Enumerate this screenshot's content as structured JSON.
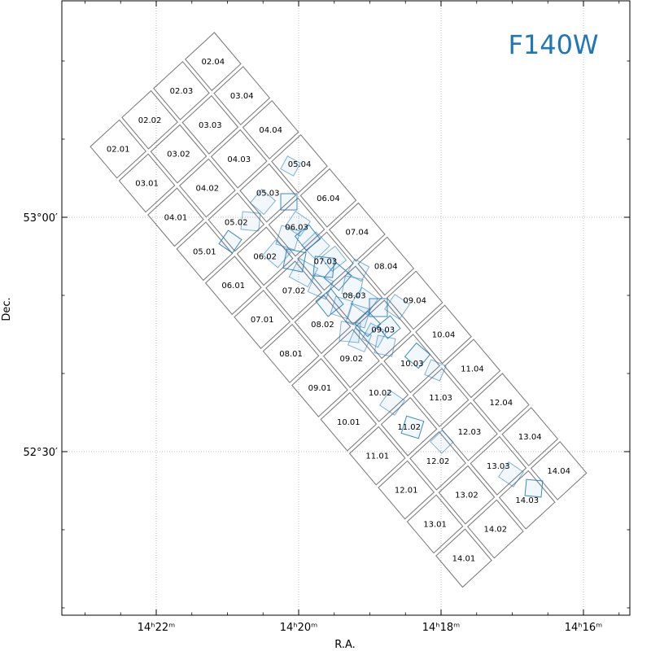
{
  "figure": {
    "filter_label": "F140W",
    "filter_color": "#1f77b4",
    "xlabel": "R.A.",
    "ylabel": "Dec."
  },
  "chart_data": {
    "type": "sky-footprint",
    "x_ticks": [
      {
        "value": 22,
        "label": "14ʰ22ᵐ"
      },
      {
        "value": 20,
        "label": "14ʰ20ᵐ"
      },
      {
        "value": 18,
        "label": "14ʰ18ᵐ"
      },
      {
        "value": 16,
        "label": "14ʰ16ᵐ"
      }
    ],
    "y_ticks": [
      {
        "value": 53.0,
        "label": "53°00′"
      },
      {
        "value": 52.5,
        "label": "52°30′"
      }
    ],
    "grid": true,
    "tile_outline_color": "#808080",
    "exposure_color": "#1f77b4",
    "tiles": [
      {
        "name": "02.01",
        "row": 2,
        "col": 1
      },
      {
        "name": "02.02",
        "row": 2,
        "col": 2
      },
      {
        "name": "02.03",
        "row": 2,
        "col": 3
      },
      {
        "name": "02.04",
        "row": 2,
        "col": 4
      },
      {
        "name": "03.01",
        "row": 3,
        "col": 1
      },
      {
        "name": "03.02",
        "row": 3,
        "col": 2
      },
      {
        "name": "03.03",
        "row": 3,
        "col": 3
      },
      {
        "name": "03.04",
        "row": 3,
        "col": 4
      },
      {
        "name": "04.01",
        "row": 4,
        "col": 1
      },
      {
        "name": "04.02",
        "row": 4,
        "col": 2
      },
      {
        "name": "04.03",
        "row": 4,
        "col": 3
      },
      {
        "name": "04.04",
        "row": 4,
        "col": 4
      },
      {
        "name": "05.01",
        "row": 5,
        "col": 1
      },
      {
        "name": "05.02",
        "row": 5,
        "col": 2
      },
      {
        "name": "05.03",
        "row": 5,
        "col": 3
      },
      {
        "name": "05.04",
        "row": 5,
        "col": 4
      },
      {
        "name": "06.01",
        "row": 6,
        "col": 1
      },
      {
        "name": "06.02",
        "row": 6,
        "col": 2
      },
      {
        "name": "06.03",
        "row": 6,
        "col": 3
      },
      {
        "name": "06.04",
        "row": 6,
        "col": 4
      },
      {
        "name": "07.01",
        "row": 7,
        "col": 1
      },
      {
        "name": "07.02",
        "row": 7,
        "col": 2
      },
      {
        "name": "07.03",
        "row": 7,
        "col": 3
      },
      {
        "name": "07.04",
        "row": 7,
        "col": 4
      },
      {
        "name": "08.01",
        "row": 8,
        "col": 1
      },
      {
        "name": "08.02",
        "row": 8,
        "col": 2
      },
      {
        "name": "08.03",
        "row": 8,
        "col": 3
      },
      {
        "name": "08.04",
        "row": 8,
        "col": 4
      },
      {
        "name": "09.01",
        "row": 9,
        "col": 1
      },
      {
        "name": "09.02",
        "row": 9,
        "col": 2
      },
      {
        "name": "09.03",
        "row": 9,
        "col": 3
      },
      {
        "name": "09.04",
        "row": 9,
        "col": 4
      },
      {
        "name": "10.01",
        "row": 10,
        "col": 1
      },
      {
        "name": "10.02",
        "row": 10,
        "col": 2
      },
      {
        "name": "10.03",
        "row": 10,
        "col": 3
      },
      {
        "name": "10.04",
        "row": 10,
        "col": 4
      },
      {
        "name": "11.01",
        "row": 11,
        "col": 1
      },
      {
        "name": "11.02",
        "row": 11,
        "col": 2
      },
      {
        "name": "11.03",
        "row": 11,
        "col": 3
      },
      {
        "name": "11.04",
        "row": 11,
        "col": 4
      },
      {
        "name": "12.01",
        "row": 12,
        "col": 1
      },
      {
        "name": "12.02",
        "row": 12,
        "col": 2
      },
      {
        "name": "12.03",
        "row": 12,
        "col": 3
      },
      {
        "name": "12.04",
        "row": 12,
        "col": 4
      },
      {
        "name": "13.01",
        "row": 13,
        "col": 1
      },
      {
        "name": "13.02",
        "row": 13,
        "col": 2
      },
      {
        "name": "13.03",
        "row": 13,
        "col": 3
      },
      {
        "name": "13.04",
        "row": 13,
        "col": 4
      },
      {
        "name": "14.01",
        "row": 14,
        "col": 1
      },
      {
        "name": "14.02",
        "row": 14,
        "col": 2
      },
      {
        "name": "14.03",
        "row": 14,
        "col": 3
      },
      {
        "name": "14.04",
        "row": 14,
        "col": 4
      }
    ]
  }
}
